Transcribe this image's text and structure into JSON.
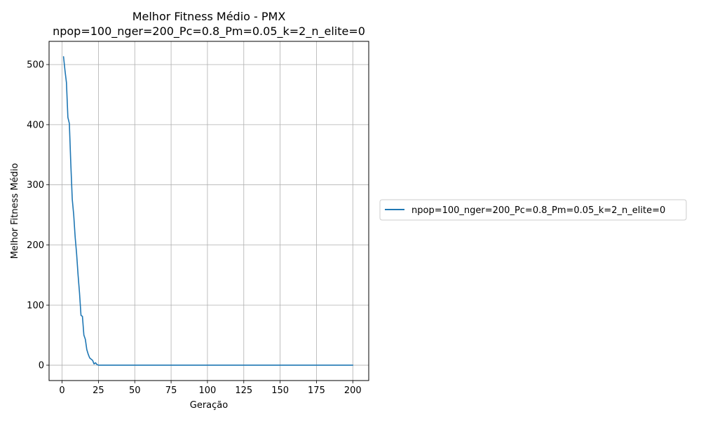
{
  "chart_data": {
    "type": "line",
    "title": "Melhor Fitness Médio - PMX",
    "subtitle": "npop=100_nger=200_Pc=0.8_Pm=0.05_k=2_n_elite=0",
    "xlabel": "Geração",
    "ylabel": "Melhor Fitness Médio",
    "xlim": [
      -8.95,
      210.95
    ],
    "ylim": [
      -25.6,
      538.6
    ],
    "xticks": [
      0,
      25,
      50,
      75,
      100,
      125,
      150,
      175,
      200
    ],
    "yticks": [
      0,
      100,
      200,
      300,
      400,
      500
    ],
    "grid": true,
    "legend_position": "right-outside",
    "series": [
      {
        "name": "npop=100_nger=200_Pc=0.8_Pm=0.05_k=2_n_elite=0",
        "color": "#1f77b4",
        "x": [
          1,
          2,
          3,
          4,
          5,
          6,
          7,
          8,
          9,
          10,
          11,
          12,
          13,
          14,
          15,
          16,
          17,
          18,
          19,
          20,
          21,
          22,
          23,
          24,
          25,
          50,
          100,
          150,
          200
        ],
        "y": [
          513,
          490,
          470,
          412,
          402,
          335,
          276,
          250,
          213,
          185,
          150,
          120,
          83,
          81,
          50,
          43,
          26,
          18,
          12,
          10,
          8,
          2,
          4,
          1,
          0,
          0,
          0,
          0,
          0
        ]
      }
    ]
  }
}
